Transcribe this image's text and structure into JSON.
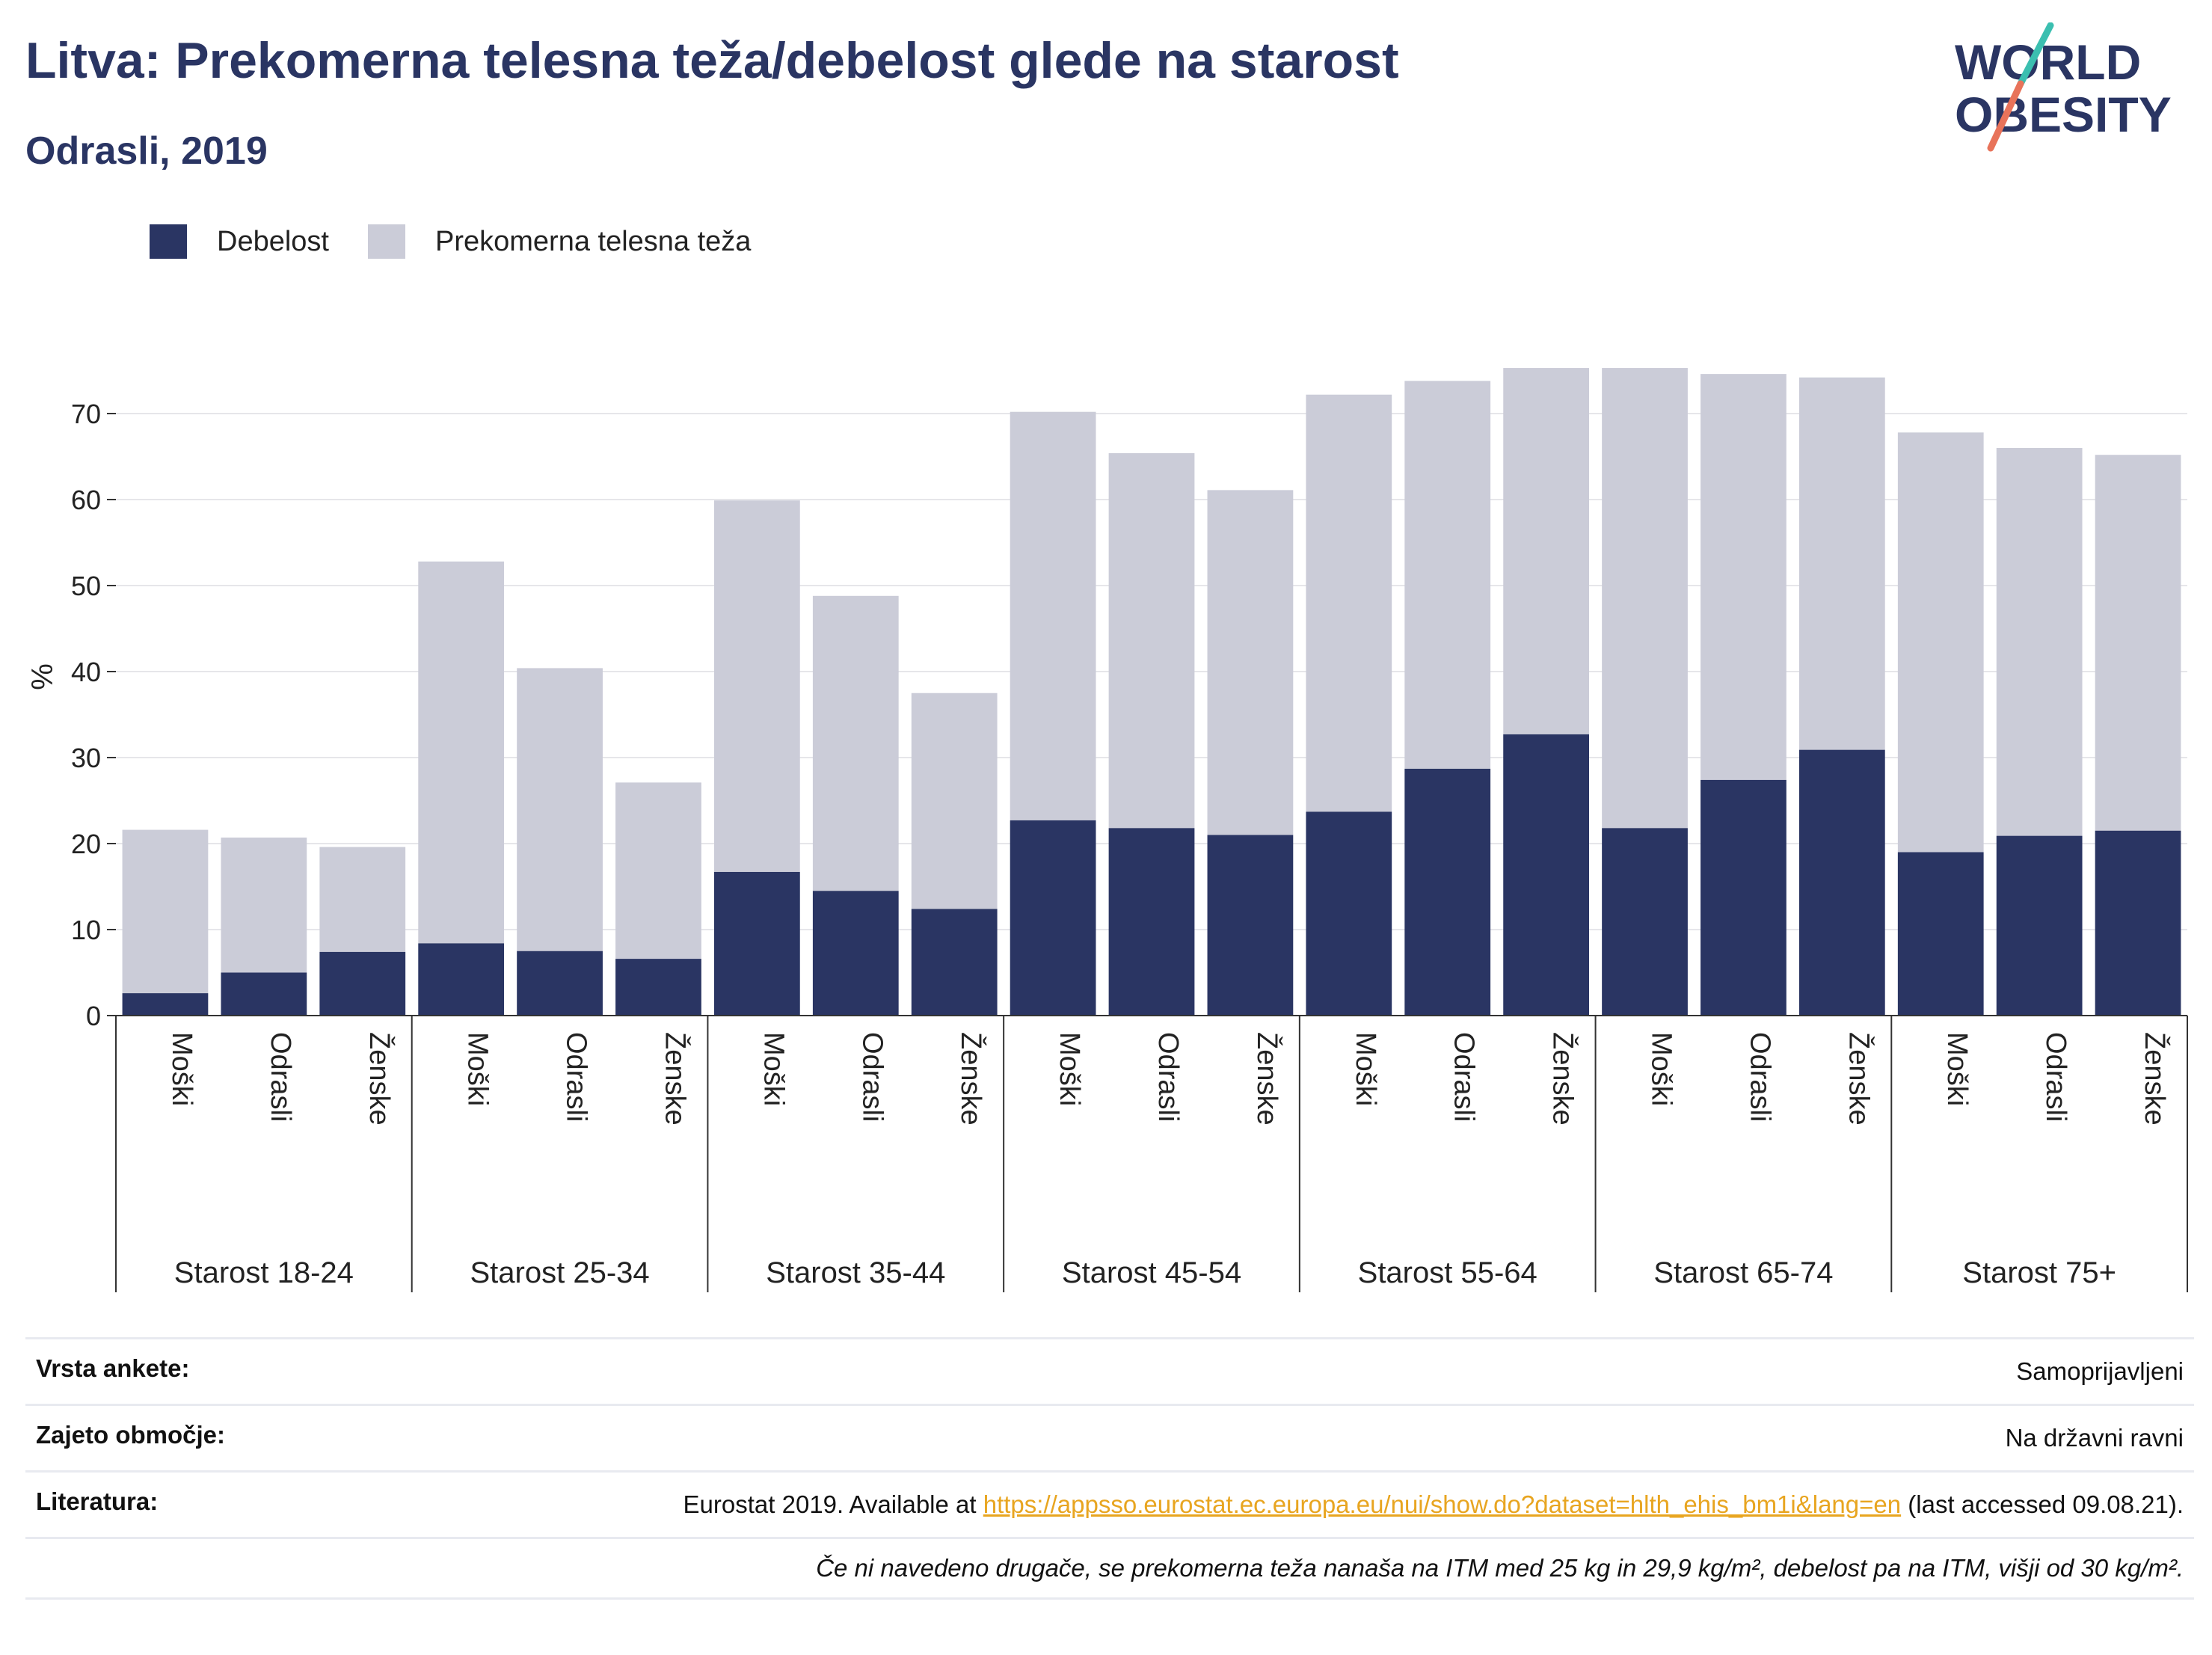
{
  "title": "Litva: Prekomerna telesna teža/debelost glede na starost",
  "subtitle": "Odrasli, 2019",
  "logo": {
    "line1": "WORLD",
    "line2": "OBESITY"
  },
  "colors": {
    "obesity": "#2a3563",
    "overweight": "#cbccd8",
    "title": "#2a3563",
    "logo_slash": "#e8735a",
    "logo_slash_top": "#3bbfb0"
  },
  "legend": [
    {
      "label": "Debelost",
      "color": "#2a3563"
    },
    {
      "label": "Prekomerna telesna teža",
      "color": "#cbccd8"
    }
  ],
  "chart_data": {
    "type": "bar",
    "stacked": true,
    "ylabel": "%",
    "ylim": [
      0,
      80
    ],
    "yticks": [
      0,
      10,
      20,
      30,
      40,
      50,
      60,
      70
    ],
    "grid": true,
    "legend_position": "top-left",
    "groups": [
      "Starost 18-24",
      "Starost 25-34",
      "Starost 35-44",
      "Starost 45-54",
      "Starost 55-64",
      "Starost 65-74",
      "Starost 75+"
    ],
    "subcategories": [
      "Moški",
      "Odrasli",
      "Ženske"
    ],
    "series": [
      {
        "name": "Debelost",
        "values": [
          2.6,
          5.0,
          7.4,
          8.4,
          7.5,
          6.6,
          16.7,
          14.5,
          12.4,
          22.7,
          21.8,
          21.0,
          23.7,
          28.7,
          32.7,
          21.8,
          27.4,
          30.9,
          19.0,
          20.9,
          21.5
        ]
      },
      {
        "name": "Prekomerna telesna teža",
        "values": [
          19.0,
          15.7,
          12.2,
          44.4,
          32.9,
          20.5,
          43.2,
          34.3,
          25.1,
          47.5,
          43.6,
          40.1,
          48.5,
          45.1,
          42.6,
          53.5,
          47.2,
          43.3,
          48.8,
          45.1,
          43.7
        ]
      }
    ]
  },
  "info": {
    "survey_label": "Vrsta ankete:",
    "survey_value": "Samoprijavljeni",
    "coverage_label": "Zajeto območje:",
    "coverage_value": "Na državni ravni",
    "reference_label": "Literatura:",
    "reference_prefix": "Eurostat 2019. Available at ",
    "reference_link": "https://appsso.eurostat.ec.europa.eu/nui/show.do?dataset=hlth_ehis_bm1i&lang=en",
    "reference_suffix": " (last accessed 09.08.21).",
    "note": "Če ni navedeno drugače, se prekomerna teža nanaša na ITM med 25 kg in 29,9 kg/m², debelost pa na ITM, višji od 30 kg/m²."
  }
}
